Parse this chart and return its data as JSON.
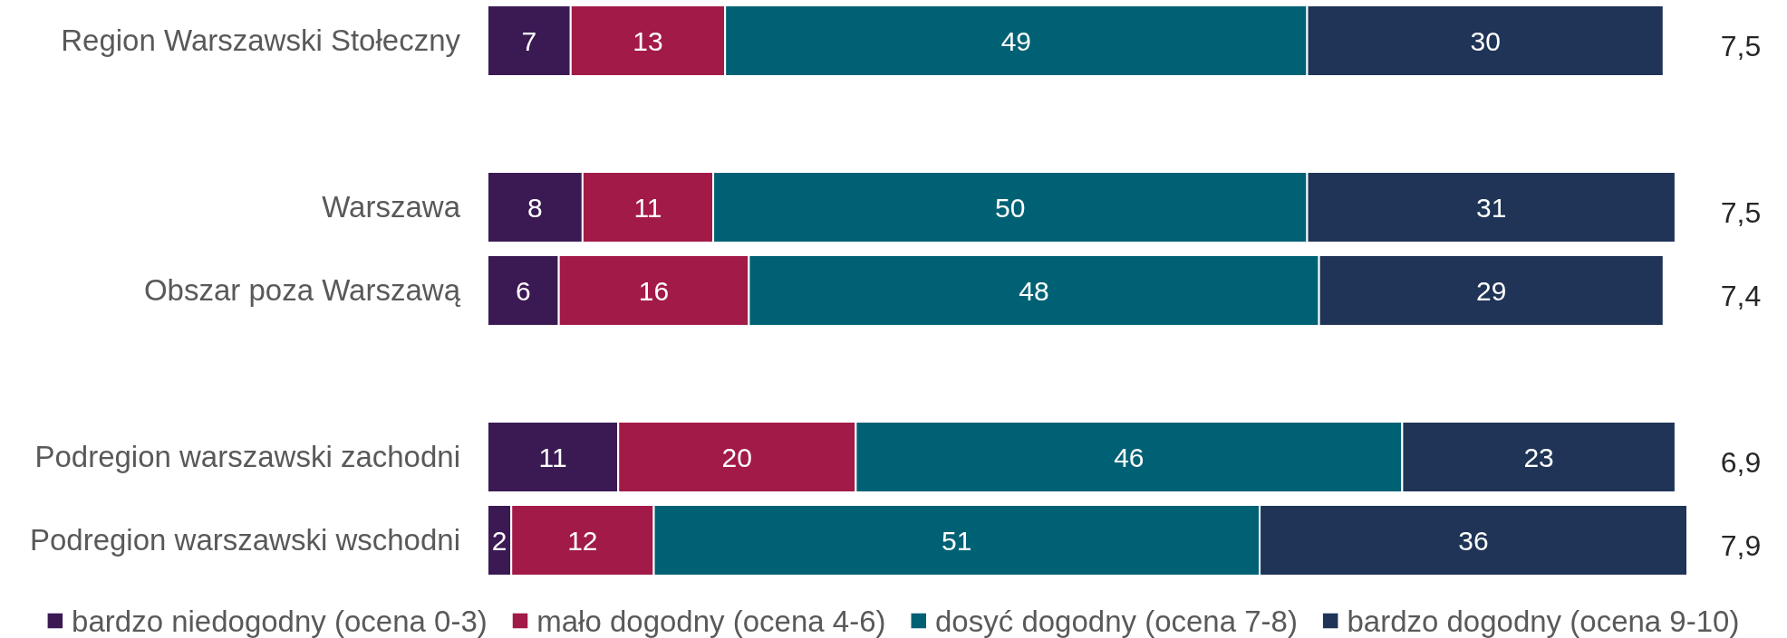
{
  "chart_data": {
    "type": "bar",
    "orientation": "horizontal",
    "stacked": true,
    "categories": [
      "Region Warszawski Stołeczny",
      null,
      "Warszawa",
      "Obszar poza Warszawą",
      null,
      "Podregion warszawski zachodni",
      "Podregion warszawski wschodni"
    ],
    "series": [
      {
        "name": "bardzo niedogodny (ocena 0-3)",
        "color": "#3b1a54",
        "values": [
          7,
          null,
          8,
          6,
          null,
          11,
          2
        ]
      },
      {
        "name": "mało dogodny (ocena 4-6)",
        "color": "#a21a47",
        "values": [
          13,
          null,
          11,
          16,
          null,
          20,
          12
        ]
      },
      {
        "name": "dosyć dogodny (ocena 7-8)",
        "color": "#006174",
        "values": [
          49,
          null,
          50,
          48,
          null,
          46,
          51
        ]
      },
      {
        "name": "bardzo dogodny (ocena 9-10)",
        "color": "#1f3456",
        "values": [
          30,
          null,
          31,
          29,
          null,
          23,
          36
        ]
      }
    ],
    "xlim": [
      0,
      101
    ],
    "data_labels": true,
    "tick_labels": "y",
    "legend": "bottom",
    "annotations": [
      "7,5",
      "7,5",
      "7,4",
      "6,9",
      "7,9"
    ]
  }
}
